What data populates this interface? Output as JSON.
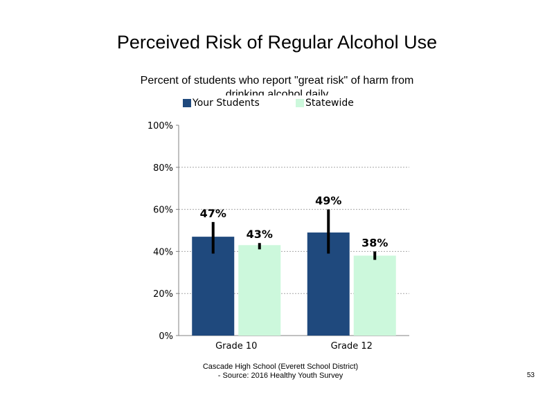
{
  "chart_data": {
    "type": "bar",
    "title": "Perceived Risk of Regular Alcohol Use",
    "subtitle": "Percent of students who report \"great risk\" of harm from drinking alcohol daily",
    "categories": [
      "Grade 10",
      "Grade 12"
    ],
    "series": [
      {
        "name": "Your Students",
        "color": "#1f497d",
        "values": [
          47,
          49
        ],
        "labels": [
          "47%",
          "49%"
        ],
        "error_low": [
          39,
          39
        ],
        "error_high": [
          54,
          60
        ]
      },
      {
        "name": "Statewide",
        "color": "#ccf8dc",
        "values": [
          43,
          38
        ],
        "labels": [
          "43%",
          "38%"
        ],
        "error_low": [
          41,
          36
        ],
        "error_high": [
          44,
          40
        ]
      }
    ],
    "ylim": [
      0,
      100
    ],
    "yticks": [
      0,
      20,
      40,
      60,
      80,
      100
    ],
    "ytick_labels": [
      "0%",
      "20%",
      "40%",
      "60%",
      "80%",
      "100%"
    ],
    "grid": true,
    "legend_position": "top"
  },
  "footer": {
    "line1": "Cascade High School (Everett School District)",
    "line2": "- Source: 2016 Healthy Youth Survey"
  },
  "page_number": "53"
}
